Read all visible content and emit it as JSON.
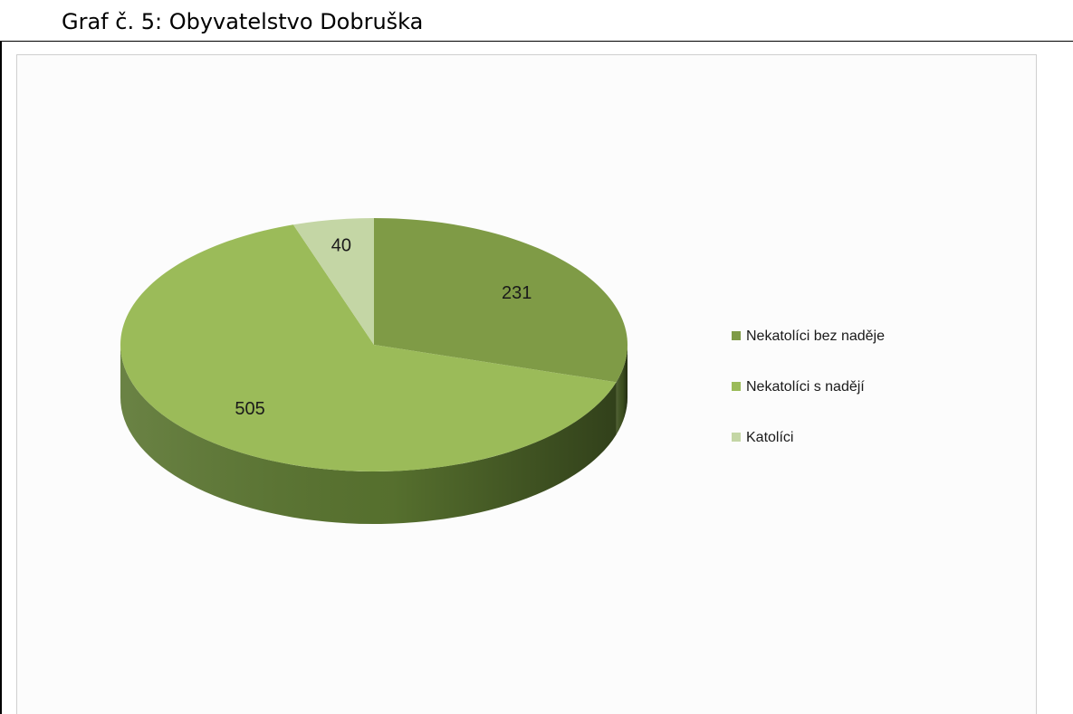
{
  "caption": "Graf č. 5: Obyvatelstvo Dobruška",
  "chart_data": {
    "type": "pie",
    "title": "",
    "categories": [
      "Nekatolíci bez naděje",
      "Nekatolíci s nadějí",
      "Katolíci"
    ],
    "values": [
      231,
      505,
      40
    ],
    "colors": [
      "#7F9B46",
      "#9BBB59",
      "#C4D6A5"
    ],
    "side_colors": [
      "#3F5220",
      "#5A7530",
      "#8FA86A"
    ],
    "style": "3d",
    "legend_position": "right"
  }
}
